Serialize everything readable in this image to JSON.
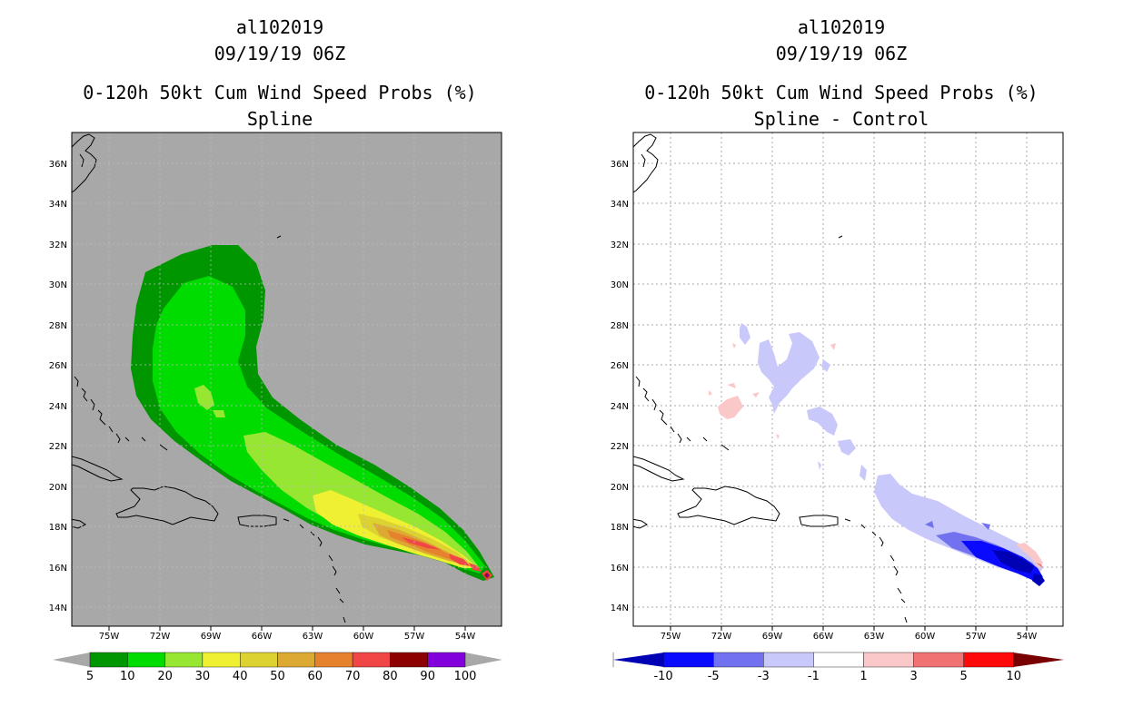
{
  "left": {
    "title_lines": [
      "al102019",
      "09/19/19 06Z",
      "0-120h 50kt Cum Wind Speed Probs (%)",
      "Spline"
    ],
    "background": "#a8a8a8",
    "colorbar": {
      "colors": [
        "#009600",
        "#00dc00",
        "#96e632",
        "#f0f032",
        "#dcd232",
        "#dcaa32",
        "#e6822d",
        "#f04646",
        "#8c0000",
        "#8200dc"
      ],
      "labels": [
        "5",
        "10",
        "20",
        "30",
        "40",
        "50",
        "60",
        "70",
        "80",
        "90",
        "100"
      ]
    }
  },
  "right": {
    "title_lines": [
      "al102019",
      "09/19/19 06Z",
      "0-120h 50kt Cum Wind Speed Probs (%)",
      "Spline - Control"
    ],
    "background": "#ffffff",
    "colorbar": {
      "colors": [
        "#0000b4",
        "#0a0aff",
        "#7272f0",
        "#c8c8fa",
        "#ffffff",
        "#fac8c8",
        "#f07272",
        "#ff0a0a",
        "#780000"
      ],
      "labels": [
        "-10",
        "-5",
        "-3",
        "-1",
        "1",
        "3",
        "5",
        "10"
      ]
    }
  },
  "axes": {
    "lon_labels": [
      "75W",
      "72W",
      "69W",
      "66W",
      "63W",
      "60W",
      "57W",
      "54W"
    ],
    "lat_labels": [
      "36N",
      "34N",
      "32N",
      "30N",
      "28N",
      "26N",
      "24N",
      "22N",
      "20N",
      "18N",
      "16N",
      "14N"
    ]
  }
}
